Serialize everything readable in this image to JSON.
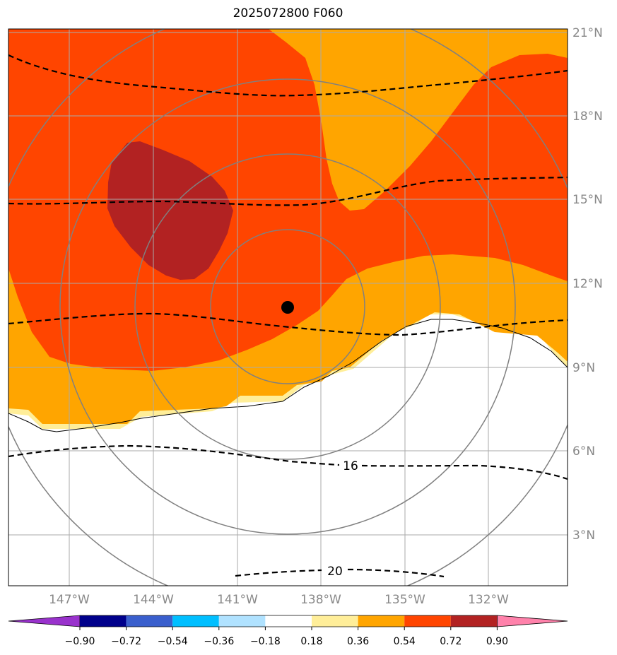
{
  "title": "2025072800 F060",
  "map": {
    "lat_labels": [
      "21°N",
      "18°N",
      "15°N",
      "12°N",
      "9°N",
      "6°N",
      "3°N"
    ],
    "lon_labels": [
      "147°W",
      "144°W",
      "141°W",
      "138°W",
      "135°W",
      "132°W"
    ],
    "contour_labels": [
      "16",
      "20"
    ],
    "storm_center": {
      "lon": "139.0°W",
      "lat": "11.1°N"
    },
    "colors": {
      "fill_0_18_0_36": "#ffee99",
      "fill_0_36_0_54": "#ffa500",
      "fill_0_54_0_72": "#ff4500",
      "fill_0_72_0_90": "#b22222",
      "grid": "#aaaaaa",
      "range_rings": "#808080"
    }
  },
  "colorbar": {
    "ticks": [
      "−0.90",
      "−0.72",
      "−0.54",
      "−0.36",
      "−0.18",
      "0.18",
      "0.36",
      "0.54",
      "0.72",
      "0.90"
    ],
    "colors": [
      "#9932cc",
      "#00008b",
      "#3a5fcd",
      "#00bfff",
      "#b0e2ff",
      "#ffffff",
      "#ffee99",
      "#ffa500",
      "#ff4500",
      "#b22222",
      "#ff82ab"
    ]
  }
}
